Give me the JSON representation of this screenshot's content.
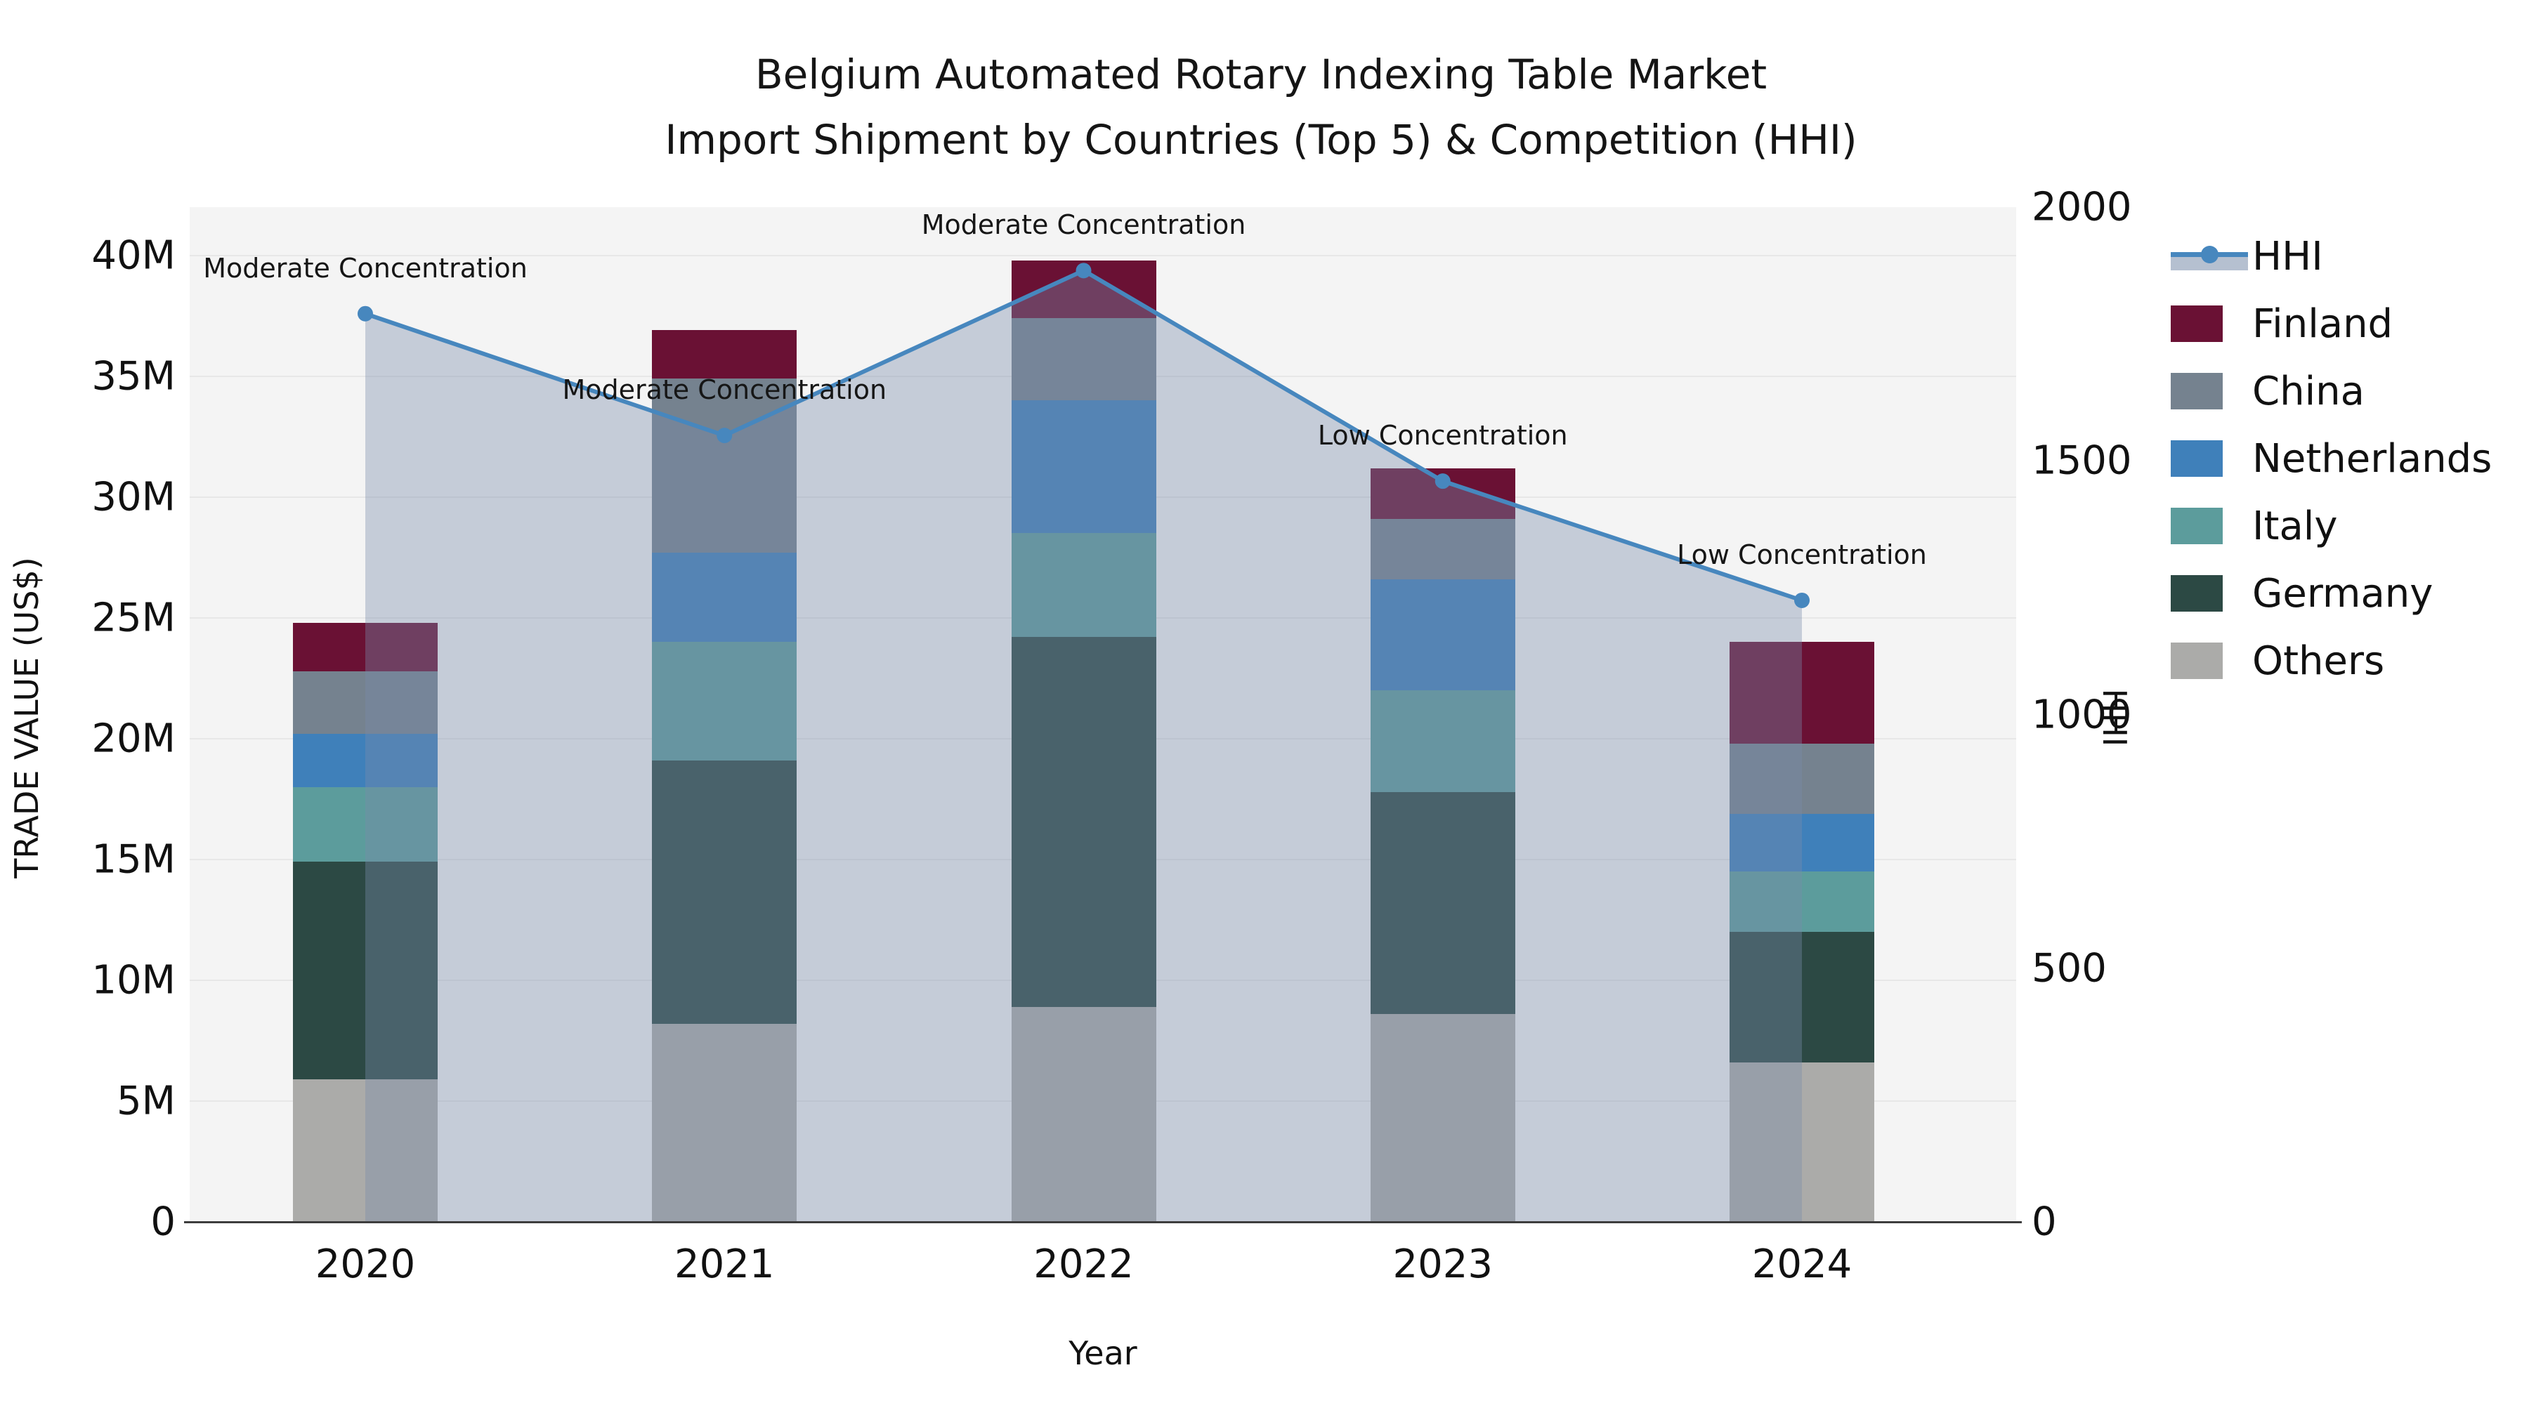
{
  "title": {
    "line1": "Belgium Automated Rotary Indexing Table Market",
    "line2": "Import Shipment by Countries (Top 5) & Competition (HHI)"
  },
  "axes": {
    "x": {
      "label": "Year",
      "tick_labels": [
        "2020",
        "2021",
        "2022",
        "2023",
        "2024"
      ]
    },
    "y_left": {
      "label": "TRADE VALUE (US$)",
      "tick_labels": [
        "0",
        "5M",
        "10M",
        "15M",
        "20M",
        "25M",
        "30M",
        "35M",
        "40M"
      ],
      "tick_values_millions": [
        0,
        5,
        10,
        15,
        20,
        25,
        30,
        35,
        40
      ]
    },
    "y_right": {
      "label": "HHI",
      "tick_labels": [
        "0",
        "500",
        "1000",
        "1500",
        "2000"
      ],
      "tick_values": [
        0,
        500,
        1000,
        1500,
        2000
      ]
    }
  },
  "legend": {
    "items": [
      {
        "label": "HHI",
        "kind": "line"
      },
      {
        "label": "Finland",
        "kind": "patch",
        "color": "#6a1134"
      },
      {
        "label": "China",
        "kind": "patch",
        "color": "#75828f"
      },
      {
        "label": "Netherlands",
        "kind": "patch",
        "color": "#3f80ba"
      },
      {
        "label": "Italy",
        "kind": "patch",
        "color": "#5c9c9c"
      },
      {
        "label": "Germany",
        "kind": "patch",
        "color": "#2c4944"
      },
      {
        "label": "Others",
        "kind": "patch",
        "color": "#abab a9"
      }
    ]
  },
  "chart_data": {
    "type": "bar",
    "subtype": "stacked-bars-with-line-overlay",
    "categories": [
      "2020",
      "2021",
      "2022",
      "2023",
      "2024"
    ],
    "units": "millions USD",
    "series": [
      {
        "name": "Others",
        "color": "#ababa9",
        "values": [
          5.9,
          8.2,
          8.9,
          8.6,
          6.6
        ]
      },
      {
        "name": "Germany",
        "color": "#2c4944",
        "values": [
          9.0,
          10.9,
          15.3,
          9.2,
          5.4
        ]
      },
      {
        "name": "Italy",
        "color": "#5c9c9c",
        "values": [
          3.1,
          4.9,
          4.3,
          4.2,
          2.5
        ]
      },
      {
        "name": "Netherlands",
        "color": "#3f80ba",
        "values": [
          2.2,
          3.7,
          5.5,
          4.6,
          2.4
        ]
      },
      {
        "name": "China",
        "color": "#75828f",
        "values": [
          2.6,
          7.2,
          3.4,
          2.5,
          2.9
        ]
      },
      {
        "name": "Finland",
        "color": "#6a1134",
        "values": [
          2.0,
          2.0,
          2.4,
          2.1,
          4.2
        ]
      }
    ],
    "bar_totals_millions": [
      24.8,
      36.9,
      39.8,
      31.2,
      24.0
    ],
    "line_series": {
      "name": "HHI",
      "axis": "right",
      "values": [
        1790,
        1550,
        1875,
        1460,
        1225
      ],
      "color": "#4787be",
      "area_fill": "rgba(120,140,170,0.38)"
    },
    "annotations": [
      {
        "category": "2020",
        "text": "Moderate Concentration"
      },
      {
        "category": "2021",
        "text": "Moderate Concentration"
      },
      {
        "category": "2022",
        "text": "Moderate Concentration"
      },
      {
        "category": "2023",
        "text": "Low Concentration"
      },
      {
        "category": "2024",
        "text": "Low Concentration"
      }
    ],
    "ylim_left_millions": [
      0,
      42
    ],
    "ylim_right": [
      0,
      2000
    ],
    "grid": "horizontal",
    "legend_position": "right",
    "plot_background": "#f4f4f4"
  },
  "colors": {
    "hhi_line": "#4787be",
    "area_fill": "rgba(120,140,170,0.38)",
    "plot_bg": "#f4f4f4",
    "gridline": "#e7e7e7",
    "spine": "#3d3d3d"
  }
}
